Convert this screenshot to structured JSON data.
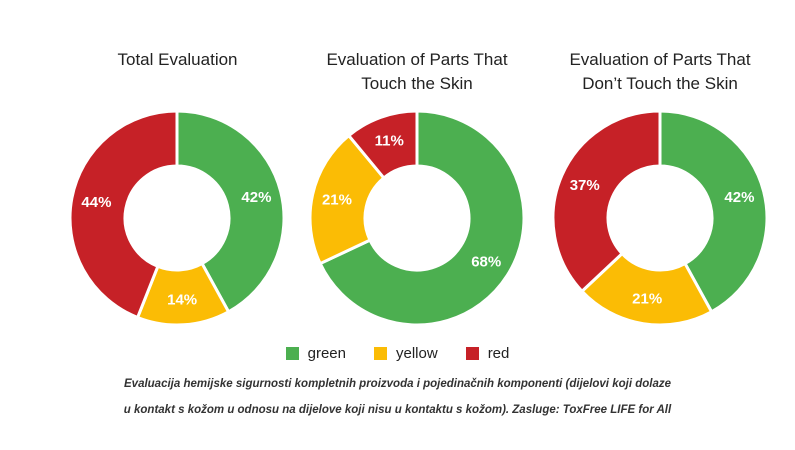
{
  "chart_data": [
    {
      "type": "pie",
      "title": "Total Evaluation",
      "categories": [
        "green",
        "yellow",
        "red"
      ],
      "values": [
        42,
        14,
        44
      ],
      "labels": [
        "42%",
        "14%",
        "44%"
      ]
    },
    {
      "type": "pie",
      "title": "Evaluation of Parts That Touch the Skin",
      "categories": [
        "green",
        "yellow",
        "red"
      ],
      "values": [
        68,
        21,
        11
      ],
      "labels": [
        "68%",
        "21%",
        "11%"
      ]
    },
    {
      "type": "pie",
      "title": "Evaluation of Parts That Don’t Touch the Skin",
      "categories": [
        "green",
        "yellow",
        "red"
      ],
      "values": [
        42,
        21,
        37
      ],
      "labels": [
        "42%",
        "21%",
        "37%"
      ]
    }
  ],
  "colors": {
    "green": "#4caf50",
    "yellow": "#fbbc05",
    "red": "#c62127"
  },
  "legend": [
    {
      "label": "green",
      "color": "#4caf50"
    },
    {
      "label": "yellow",
      "color": "#fbbc05"
    },
    {
      "label": "red",
      "color": "#c62127"
    }
  ],
  "caption": {
    "line1": "Evaluacija hemijske sigurnosti kompletnih proizvoda i pojedinačnih komponenti (dijelovi koji dolaze",
    "line2": "u kontakt s kožom u odnosu na dijelove koji nisu u kontaktu s kožom). Zasluge: ToxFree LIFE for All"
  }
}
